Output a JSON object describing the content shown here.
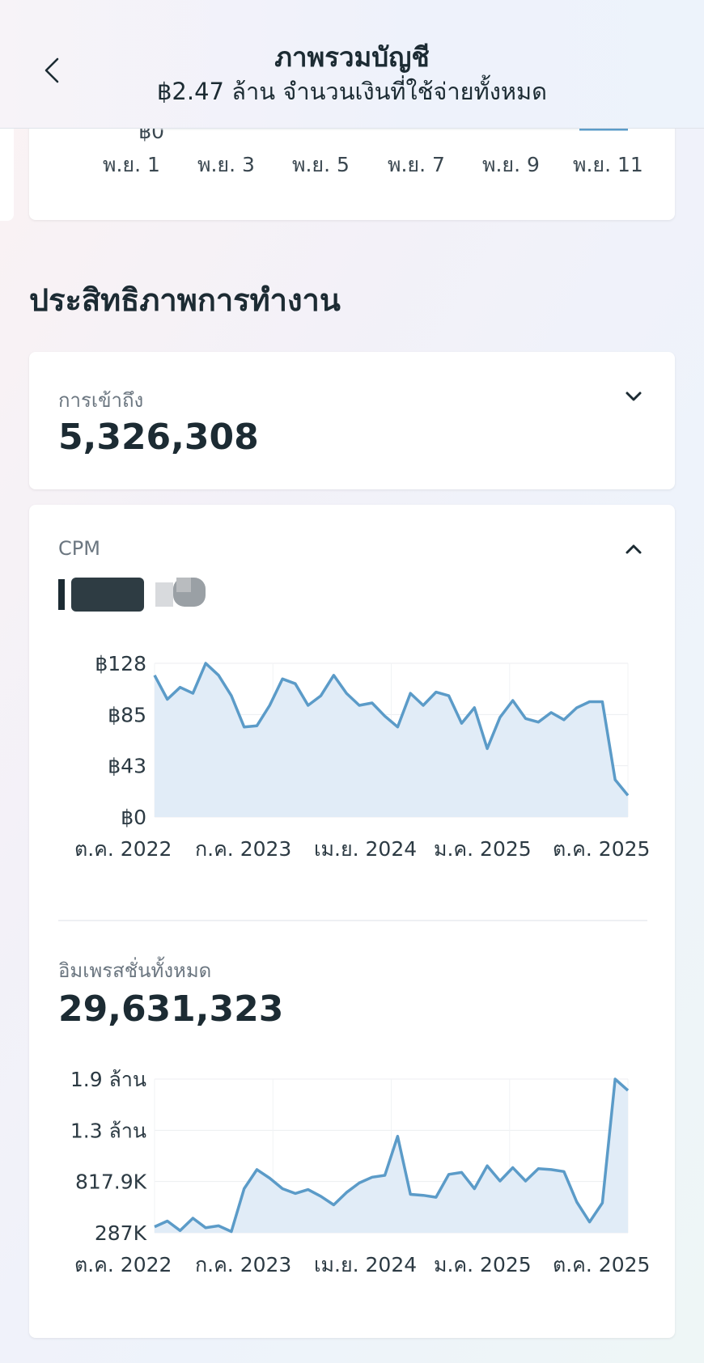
{
  "header": {
    "title": "ภาพรวมบัญชี",
    "subtitle": "฿2.47 ล้าน จำนวนเงินที่ใช้จ่ายทั้งหมด"
  },
  "top_chart": {
    "y_tick": "฿0",
    "x_ticks": [
      "พ.ย. 1",
      "พ.ย. 3",
      "พ.ย. 5",
      "พ.ย. 7",
      "พ.ย. 9",
      "พ.ย. 11"
    ]
  },
  "section": {
    "title": "ประสิทธิภาพการทำงาน"
  },
  "reach": {
    "label": "การเข้าถึง",
    "value": "5,326,308"
  },
  "cpm": {
    "label": "CPM"
  },
  "impressions": {
    "label": "อิมเพรสชั่นทั้งหมด",
    "value": "29,631,323"
  },
  "chart_data": [
    {
      "type": "area",
      "y_ticks": [
        "฿128",
        "฿85",
        "฿43",
        "฿0"
      ],
      "ylim": [
        0,
        128
      ],
      "x_tick_labels": [
        "ต.ค. 2022",
        "ก.ค. 2023",
        "เม.ย. 2024",
        "ม.ค. 2025",
        "ต.ค. 2025"
      ],
      "values": [
        118,
        98,
        108,
        103,
        128,
        118,
        101,
        75,
        76,
        93,
        115,
        111,
        93,
        101,
        118,
        103,
        93,
        95,
        84,
        75,
        103,
        93,
        104,
        101,
        78,
        91,
        57,
        83,
        97,
        82,
        79,
        87,
        81,
        91,
        96,
        96,
        31,
        18
      ],
      "color": "#5b9bc8"
    },
    {
      "type": "area",
      "y_ticks": [
        "1.9 ล้าน",
        "1.3 ล้าน",
        "817.9K",
        "287K"
      ],
      "ylim": [
        287000,
        1900000
      ],
      "x_tick_labels": [
        "ต.ค. 2022",
        "ก.ค. 2023",
        "เม.ย. 2024",
        "ม.ค. 2025",
        "ต.ค. 2025"
      ],
      "values": [
        350000,
        410000,
        310000,
        440000,
        340000,
        360000,
        300000,
        750000,
        950000,
        860000,
        750000,
        700000,
        740000,
        670000,
        580000,
        710000,
        810000,
        870000,
        890000,
        1300000,
        690000,
        680000,
        660000,
        900000,
        920000,
        750000,
        990000,
        830000,
        970000,
        830000,
        960000,
        950000,
        930000,
        610000,
        400000,
        600000,
        1900000,
        1780000
      ],
      "color": "#5b9bc8"
    }
  ]
}
